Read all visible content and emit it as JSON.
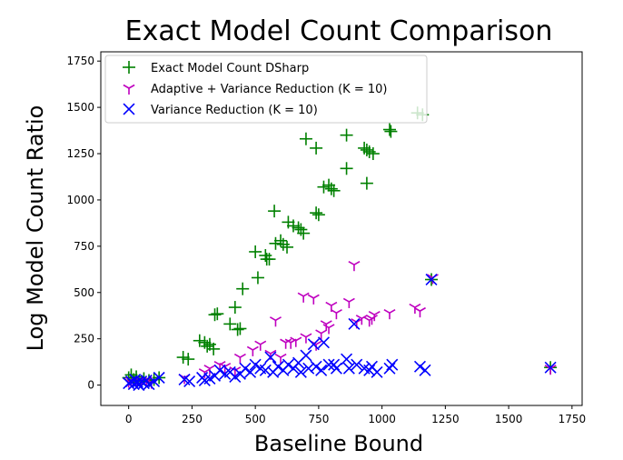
{
  "chart_data": {
    "type": "scatter",
    "title": "Exact Model Count Comparison",
    "xlabel": "Baseline Bound",
    "ylabel": "Log Model Count Ratio",
    "xlim": [
      -110,
      1790
    ],
    "ylim": [
      -110,
      1800
    ],
    "xticks": [
      0,
      250,
      500,
      750,
      1000,
      1250,
      1500,
      1750
    ],
    "yticks": [
      0,
      250,
      500,
      750,
      1000,
      1250,
      1500,
      1750
    ],
    "grid": false,
    "legend_position": "top-left",
    "series": [
      {
        "name": "Exact Model Count DSharp",
        "marker": "plus",
        "color": "#008000",
        "points": [
          [
            0,
            40
          ],
          [
            10,
            55
          ],
          [
            20,
            30
          ],
          [
            30,
            45
          ],
          [
            50,
            20
          ],
          [
            60,
            35
          ],
          [
            80,
            25
          ],
          [
            100,
            30
          ],
          [
            120,
            40
          ],
          [
            215,
            150
          ],
          [
            235,
            140
          ],
          [
            280,
            240
          ],
          [
            300,
            230
          ],
          [
            310,
            210
          ],
          [
            320,
            220
          ],
          [
            335,
            195
          ],
          [
            340,
            380
          ],
          [
            350,
            385
          ],
          [
            400,
            330
          ],
          [
            420,
            420
          ],
          [
            430,
            300
          ],
          [
            440,
            305
          ],
          [
            450,
            520
          ],
          [
            500,
            720
          ],
          [
            510,
            580
          ],
          [
            540,
            700
          ],
          [
            545,
            680
          ],
          [
            555,
            680
          ],
          [
            575,
            940
          ],
          [
            580,
            765
          ],
          [
            600,
            780
          ],
          [
            610,
            760
          ],
          [
            625,
            745
          ],
          [
            630,
            880
          ],
          [
            650,
            860
          ],
          [
            670,
            850
          ],
          [
            680,
            840
          ],
          [
            690,
            820
          ],
          [
            700,
            1330
          ],
          [
            740,
            1280
          ],
          [
            740,
            930
          ],
          [
            750,
            920
          ],
          [
            770,
            1070
          ],
          [
            790,
            1080
          ],
          [
            800,
            1060
          ],
          [
            810,
            1050
          ],
          [
            860,
            1350
          ],
          [
            860,
            1170
          ],
          [
            930,
            1280
          ],
          [
            940,
            1090
          ],
          [
            940,
            1270
          ],
          [
            950,
            1260
          ],
          [
            965,
            1250
          ],
          [
            1030,
            1380
          ],
          [
            1035,
            1370
          ],
          [
            1140,
            1470
          ],
          [
            1160,
            1460
          ],
          [
            1195,
            570
          ],
          [
            1665,
            95
          ]
        ]
      },
      {
        "name": "Adaptive + Variance Reduction (K = 10)",
        "marker": "tri_down",
        "color": "#bf00bf",
        "points": [
          [
            0,
            20
          ],
          [
            10,
            25
          ],
          [
            30,
            15
          ],
          [
            50,
            20
          ],
          [
            70,
            25
          ],
          [
            90,
            15
          ],
          [
            220,
            40
          ],
          [
            300,
            70
          ],
          [
            320,
            90
          ],
          [
            360,
            110
          ],
          [
            380,
            100
          ],
          [
            420,
            80
          ],
          [
            440,
            150
          ],
          [
            490,
            190
          ],
          [
            520,
            220
          ],
          [
            560,
            170
          ],
          [
            580,
            350
          ],
          [
            600,
            150
          ],
          [
            620,
            230
          ],
          [
            640,
            230
          ],
          [
            660,
            240
          ],
          [
            690,
            480
          ],
          [
            700,
            260
          ],
          [
            730,
            470
          ],
          [
            740,
            220
          ],
          [
            760,
            280
          ],
          [
            780,
            330
          ],
          [
            790,
            310
          ],
          [
            800,
            430
          ],
          [
            820,
            390
          ],
          [
            870,
            450
          ],
          [
            890,
            650
          ],
          [
            900,
            340
          ],
          [
            920,
            360
          ],
          [
            950,
            350
          ],
          [
            960,
            360
          ],
          [
            970,
            380
          ],
          [
            1030,
            390
          ],
          [
            1130,
            420
          ],
          [
            1150,
            400
          ],
          [
            1200,
            580
          ],
          [
            1665,
            90
          ]
        ]
      },
      {
        "name": "Variance Reduction (K = 10)",
        "marker": "x",
        "color": "#0000ff",
        "points": [
          [
            0,
            10
          ],
          [
            10,
            20
          ],
          [
            20,
            5
          ],
          [
            25,
            30
          ],
          [
            35,
            15
          ],
          [
            40,
            0
          ],
          [
            50,
            20
          ],
          [
            60,
            10
          ],
          [
            70,
            25
          ],
          [
            80,
            5
          ],
          [
            100,
            20
          ],
          [
            120,
            40
          ],
          [
            220,
            30
          ],
          [
            240,
            20
          ],
          [
            290,
            40
          ],
          [
            300,
            25
          ],
          [
            320,
            35
          ],
          [
            340,
            50
          ],
          [
            360,
            80
          ],
          [
            380,
            60
          ],
          [
            400,
            70
          ],
          [
            420,
            45
          ],
          [
            440,
            60
          ],
          [
            460,
            90
          ],
          [
            480,
            70
          ],
          [
            500,
            110
          ],
          [
            520,
            90
          ],
          [
            540,
            80
          ],
          [
            560,
            150
          ],
          [
            570,
            70
          ],
          [
            590,
            100
          ],
          [
            610,
            80
          ],
          [
            630,
            110
          ],
          [
            650,
            90
          ],
          [
            670,
            120
          ],
          [
            680,
            70
          ],
          [
            700,
            160
          ],
          [
            710,
            90
          ],
          [
            730,
            220
          ],
          [
            740,
            100
          ],
          [
            760,
            80
          ],
          [
            770,
            230
          ],
          [
            790,
            110
          ],
          [
            810,
            110
          ],
          [
            820,
            90
          ],
          [
            860,
            140
          ],
          [
            870,
            90
          ],
          [
            890,
            330
          ],
          [
            900,
            110
          ],
          [
            930,
            90
          ],
          [
            950,
            80
          ],
          [
            960,
            100
          ],
          [
            980,
            70
          ],
          [
            1030,
            90
          ],
          [
            1040,
            110
          ],
          [
            1150,
            100
          ],
          [
            1170,
            80
          ],
          [
            1195,
            570
          ],
          [
            1665,
            95
          ]
        ]
      }
    ]
  }
}
